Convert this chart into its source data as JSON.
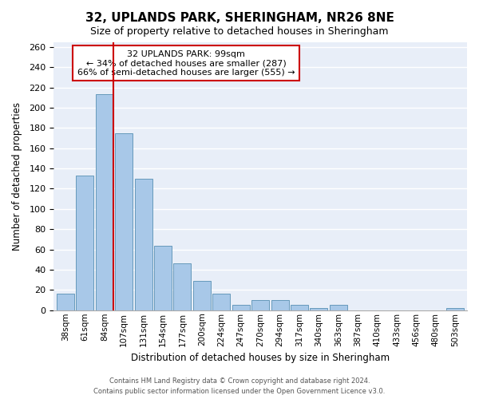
{
  "title": "32, UPLANDS PARK, SHERINGHAM, NR26 8NE",
  "subtitle": "Size of property relative to detached houses in Sheringham",
  "xlabel": "Distribution of detached houses by size in Sheringham",
  "ylabel": "Number of detached properties",
  "bar_color": "#a8c8e8",
  "bar_edge_color": "#6699bb",
  "marker_line_color": "#cc0000",
  "background_color": "#ffffff",
  "plot_bg_color": "#e8eef8",
  "grid_color": "#ffffff",
  "categories": [
    "38sqm",
    "61sqm",
    "84sqm",
    "107sqm",
    "131sqm",
    "154sqm",
    "177sqm",
    "200sqm",
    "224sqm",
    "247sqm",
    "270sqm",
    "294sqm",
    "317sqm",
    "340sqm",
    "363sqm",
    "387sqm",
    "410sqm",
    "433sqm",
    "456sqm",
    "480sqm",
    "503sqm"
  ],
  "values": [
    16,
    133,
    213,
    175,
    130,
    64,
    46,
    29,
    16,
    5,
    10,
    10,
    5,
    2,
    5,
    0,
    0,
    0,
    0,
    0,
    2
  ],
  "ylim": [
    0,
    265
  ],
  "yticks": [
    0,
    20,
    40,
    60,
    80,
    100,
    120,
    140,
    160,
    180,
    200,
    220,
    240,
    260
  ],
  "marker_bar_index": 2,
  "annotation_title": "32 UPLANDS PARK: 99sqm",
  "annotation_line1": "← 34% of detached houses are smaller (287)",
  "annotation_line2": "66% of semi-detached houses are larger (555) →",
  "annotation_box_color": "#ffffff",
  "annotation_border_color": "#cc0000",
  "footer_line1": "Contains HM Land Registry data © Crown copyright and database right 2024.",
  "footer_line2": "Contains public sector information licensed under the Open Government Licence v3.0."
}
